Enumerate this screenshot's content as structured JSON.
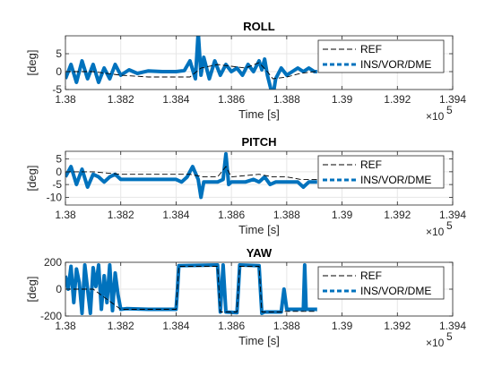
{
  "chart_data": [
    {
      "type": "line",
      "title": "ROLL",
      "xlabel": "Time [s]",
      "ylabel": "[deg]",
      "x_exponent_label": "×10",
      "x_exponent": "5",
      "xlim": [
        1.38,
        1.394
      ],
      "ylim": [
        -5,
        10
      ],
      "xticks": [
        1.38,
        1.382,
        1.384,
        1.386,
        1.388,
        1.39,
        1.392,
        1.394
      ],
      "xtick_labels": [
        "1.38",
        "1.382",
        "1.384",
        "1.386",
        "1.388",
        "1.39",
        "1.392",
        "1.394"
      ],
      "yticks": [
        -5,
        0,
        5
      ],
      "ytick_labels": [
        "-5",
        "0",
        "5"
      ],
      "grid": true,
      "legend_position": "top-right",
      "series": [
        {
          "name": "REF",
          "style": "dashed",
          "color": "#000000",
          "x": [
            1.38,
            1.381,
            1.382,
            1.383,
            1.384,
            1.3845,
            1.3849,
            1.3855,
            1.386,
            1.3865,
            1.387,
            1.3873,
            1.3875,
            1.388,
            1.3885,
            1.389,
            1.3891
          ],
          "y": [
            0,
            0,
            -1,
            -1.5,
            -1.5,
            -1.5,
            1,
            2,
            1.5,
            1,
            2.5,
            0,
            -2,
            -1.5,
            -0.5,
            0,
            0
          ]
        },
        {
          "name": "INS/VOR/DME",
          "style": "thick",
          "color": "#0072BD",
          "x": [
            1.38,
            1.3802,
            1.3804,
            1.3806,
            1.3808,
            1.381,
            1.3812,
            1.3814,
            1.3816,
            1.3818,
            1.382,
            1.3823,
            1.3826,
            1.383,
            1.3835,
            1.384,
            1.3843,
            1.3845,
            1.3847,
            1.3848,
            1.3849,
            1.385,
            1.3852,
            1.3854,
            1.3856,
            1.3858,
            1.386,
            1.3862,
            1.3864,
            1.3866,
            1.3868,
            1.387,
            1.3871,
            1.3872,
            1.3873,
            1.3874,
            1.3875,
            1.3876,
            1.3878,
            1.388,
            1.3882,
            1.3884,
            1.3886,
            1.3888,
            1.389,
            1.3891
          ],
          "y": [
            -2,
            2,
            -3,
            3,
            -2,
            2,
            -3,
            1,
            -2,
            2,
            -1,
            0.5,
            -0.5,
            0.2,
            0,
            0,
            0.3,
            3,
            -2,
            11,
            -1,
            4,
            -2,
            3,
            -1,
            2,
            0,
            1,
            -1,
            2,
            0,
            3,
            0.5,
            3.5,
            -1,
            -4,
            -7,
            -2,
            1,
            -1,
            0,
            1,
            0,
            1,
            0,
            0
          ]
        }
      ]
    },
    {
      "type": "line",
      "title": "PITCH",
      "xlabel": "Time [s]",
      "ylabel": "[deg]",
      "x_exponent_label": "×10",
      "x_exponent": "5",
      "xlim": [
        1.38,
        1.394
      ],
      "ylim": [
        -13,
        8
      ],
      "xticks": [
        1.38,
        1.382,
        1.384,
        1.386,
        1.388,
        1.39,
        1.392,
        1.394
      ],
      "xtick_labels": [
        "1.38",
        "1.382",
        "1.384",
        "1.386",
        "1.388",
        "1.39",
        "1.392",
        "1.394"
      ],
      "yticks": [
        -10,
        -5,
        0,
        5
      ],
      "ytick_labels": [
        "-10",
        "-5",
        "0",
        "5"
      ],
      "grid": true,
      "legend_position": "top-right",
      "series": [
        {
          "name": "REF",
          "style": "dashed",
          "color": "#000000",
          "x": [
            1.38,
            1.381,
            1.382,
            1.383,
            1.384,
            1.3845,
            1.385,
            1.3855,
            1.3858,
            1.386,
            1.387,
            1.3875,
            1.388,
            1.3885,
            1.389,
            1.3891
          ],
          "y": [
            0,
            0,
            -1,
            -1,
            -1,
            -1,
            -2,
            -2,
            2,
            -2,
            -1,
            -2,
            -2,
            -3,
            -3,
            -3
          ]
        },
        {
          "name": "INS/VOR/DME",
          "style": "thick",
          "color": "#0072BD",
          "x": [
            1.38,
            1.3802,
            1.3804,
            1.3806,
            1.3808,
            1.381,
            1.3812,
            1.3814,
            1.3816,
            1.3818,
            1.382,
            1.3825,
            1.383,
            1.3835,
            1.384,
            1.3842,
            1.3844,
            1.3846,
            1.3848,
            1.3849,
            1.385,
            1.3852,
            1.3855,
            1.3857,
            1.3858,
            1.3859,
            1.386,
            1.3862,
            1.3865,
            1.3868,
            1.387,
            1.3872,
            1.3874,
            1.3876,
            1.3878,
            1.388,
            1.3884,
            1.3886,
            1.3888,
            1.389,
            1.3891
          ],
          "y": [
            -2,
            2,
            -5,
            1,
            -6,
            -1,
            -2,
            -4,
            -2,
            -1,
            -3,
            -3,
            -3,
            -3,
            -3,
            -4,
            -2,
            2,
            -3,
            -10,
            -4,
            -4,
            -4,
            -3,
            7,
            -5,
            -4,
            -4,
            -4,
            -3,
            -4,
            -2,
            -5,
            -4,
            -4,
            -4,
            -4,
            -6,
            -4,
            -4,
            -4
          ]
        }
      ]
    },
    {
      "type": "line",
      "title": "YAW",
      "xlabel": "Time [s]",
      "ylabel": "[deg]",
      "x_exponent_label": "×10",
      "x_exponent": "5",
      "xlim": [
        1.38,
        1.394
      ],
      "ylim": [
        -200,
        200
      ],
      "xticks": [
        1.38,
        1.382,
        1.384,
        1.386,
        1.388,
        1.39,
        1.392,
        1.394
      ],
      "xtick_labels": [
        "1.38",
        "1.382",
        "1.384",
        "1.386",
        "1.388",
        "1.39",
        "1.392",
        "1.394"
      ],
      "yticks": [
        -200,
        0,
        200
      ],
      "ytick_labels": [
        "-200",
        "0",
        "200"
      ],
      "grid": true,
      "legend_position": "top-right",
      "series": [
        {
          "name": "REF",
          "style": "dashed",
          "color": "#000000",
          "x": [
            1.38,
            1.381,
            1.382,
            1.383,
            1.384,
            1.3841,
            1.3855,
            1.3856,
            1.3862,
            1.3863,
            1.387,
            1.3871,
            1.3878,
            1.3879,
            1.3891
          ],
          "y": [
            0,
            0,
            -150,
            -150,
            -150,
            170,
            170,
            -170,
            -170,
            170,
            170,
            -170,
            -170,
            -165,
            -165
          ]
        },
        {
          "name": "INS/VOR/DME",
          "style": "thick",
          "color": "#0072BD",
          "x": [
            1.38,
            1.3801,
            1.3802,
            1.3803,
            1.3804,
            1.3805,
            1.3806,
            1.3807,
            1.3808,
            1.3809,
            1.381,
            1.3811,
            1.3812,
            1.3813,
            1.3814,
            1.3815,
            1.3816,
            1.3817,
            1.3818,
            1.3819,
            1.382,
            1.3822,
            1.383,
            1.384,
            1.38405,
            1.3841,
            1.3855,
            1.38555,
            1.3856,
            1.3857,
            1.3858,
            1.3862,
            1.38625,
            1.3863,
            1.387,
            1.38705,
            1.3871,
            1.3872,
            1.3878,
            1.3879,
            1.388,
            1.3886,
            1.38865,
            1.3887,
            1.389,
            1.3891
          ],
          "y": [
            100,
            0,
            170,
            -100,
            150,
            50,
            -180,
            180,
            0,
            -180,
            160,
            20,
            180,
            -150,
            100,
            -100,
            180,
            -160,
            120,
            -40,
            -150,
            -145,
            -150,
            -150,
            0,
            175,
            180,
            0,
            -170,
            180,
            -170,
            -175,
            0,
            180,
            175,
            0,
            -180,
            -170,
            -170,
            0,
            -150,
            -150,
            180,
            -150,
            -150,
            -150
          ]
        }
      ]
    }
  ]
}
